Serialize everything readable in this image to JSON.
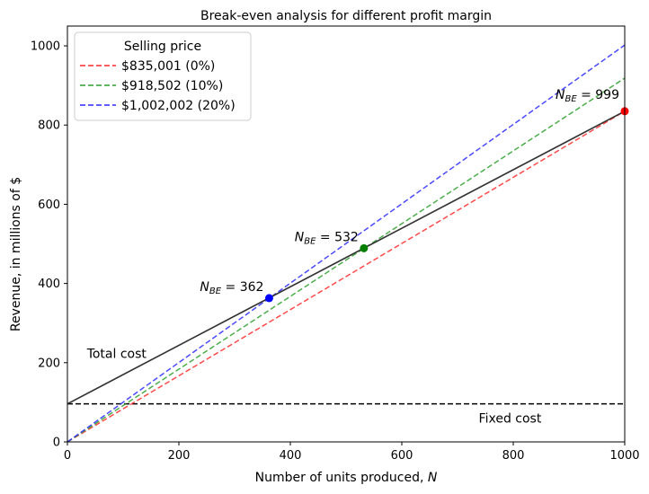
{
  "chart_data": {
    "type": "line",
    "title": "Break-even analysis for different profit margin",
    "xlabel": "Number of units produced, N",
    "ylabel": "Revenue, in millions of $",
    "xlim": [
      0,
      1000
    ],
    "ylim": [
      0,
      1050
    ],
    "xticks": [
      0,
      200,
      400,
      600,
      800,
      1000
    ],
    "yticks": [
      0,
      200,
      400,
      600,
      800,
      1000
    ],
    "legend": {
      "title": "Selling price",
      "placement": "top-left"
    },
    "series": [
      {
        "name": "$835,001 (0%)",
        "style": "dashed",
        "color": "#ff2a2a",
        "x": [
          0,
          1000
        ],
        "y": [
          0,
          835
        ]
      },
      {
        "name": "$918,502 (10%)",
        "style": "dashed",
        "color": "#2ca02c",
        "x": [
          0,
          1000
        ],
        "y": [
          0,
          918.5
        ]
      },
      {
        "name": "$1,002,002 (20%)",
        "style": "dashed",
        "color": "#2a2aff",
        "x": [
          0,
          1000
        ],
        "y": [
          0,
          1002
        ]
      }
    ],
    "total_cost": {
      "label": "Total cost",
      "color": "#333333",
      "x": [
        0,
        1000
      ],
      "y": [
        96,
        835
      ]
    },
    "fixed_cost": {
      "label": "Fixed cost",
      "color": "#000000",
      "y": 96
    },
    "break_even_points": [
      {
        "n_label": "N",
        "sub": "BE",
        "value_text": " = 362",
        "x": 362,
        "y": 363,
        "color": "#0000ff"
      },
      {
        "n_label": "N",
        "sub": "BE",
        "value_text": " = 532",
        "x": 532,
        "y": 489,
        "color": "#007f00"
      },
      {
        "n_label": "N",
        "sub": "BE",
        "value_text": " = 999",
        "x": 1000,
        "y": 835,
        "color": "#ff0000"
      }
    ]
  }
}
